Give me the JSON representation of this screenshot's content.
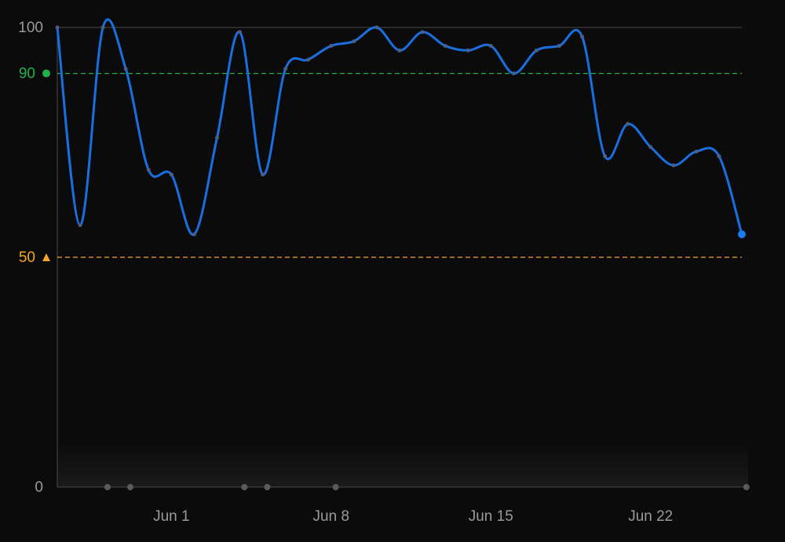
{
  "chart_data": {
    "type": "line",
    "x_start": "May 27",
    "x_ticks": [
      "Jun 1",
      "Jun 8",
      "Jun 15",
      "Jun 22"
    ],
    "ylim": [
      0,
      100
    ],
    "y_ticks": [
      "0",
      "100"
    ],
    "series": [
      {
        "color": "#1a6fe0",
        "values": [
          100,
          57,
          100,
          91,
          69,
          68,
          55,
          76,
          99,
          68,
          91,
          93,
          96,
          97,
          100,
          95,
          99,
          96,
          95,
          96,
          90,
          95,
          96,
          98,
          72,
          79,
          74,
          70,
          73,
          72,
          55
        ]
      }
    ],
    "thresholds": [
      {
        "label": "90",
        "value": 90,
        "color": "#22b04b",
        "marker": "circle"
      },
      {
        "label": "50",
        "value": 50,
        "color": "#f5a623",
        "marker": "triangle"
      }
    ],
    "event_markers": [
      2.2,
      3.2,
      8.2,
      9.2,
      12.2,
      30.2
    ]
  }
}
